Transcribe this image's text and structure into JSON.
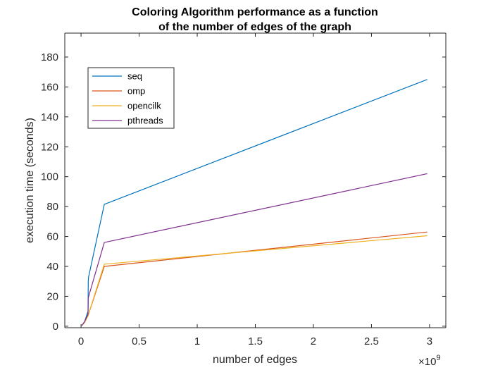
{
  "chart_data": {
    "type": "line",
    "title_lines": [
      "Coloring Algorithm performance as a function",
      "of the number of edges of the graph"
    ],
    "xlabel": "number of edges",
    "ylabel": "execution time (seconds)",
    "x_exponent_label": "×10",
    "x_exponent_power": "9",
    "xlim": [
      -0.14,
      3.14
    ],
    "ylim": [
      -1,
      196
    ],
    "xticks": [
      0,
      0.5,
      1,
      1.5,
      2,
      2.5,
      3
    ],
    "xtick_labels": [
      "0",
      "0.5",
      "1",
      "1.5",
      "2",
      "2.5",
      "3"
    ],
    "yticks": [
      0,
      20,
      40,
      60,
      80,
      100,
      120,
      140,
      160,
      180
    ],
    "ytick_labels": [
      "0",
      "20",
      "40",
      "60",
      "80",
      "100",
      "120",
      "140",
      "160",
      "180"
    ],
    "grid": false,
    "legend_position": "top-left",
    "series": [
      {
        "name": "seq",
        "color": "#0072BD",
        "x": [
          0.007,
          0.03,
          0.06,
          0.062,
          0.065,
          0.2,
          2.98
        ],
        "y": [
          0.5,
          3,
          10,
          30,
          33,
          81.5,
          165
        ]
      },
      {
        "name": "omp",
        "color": "#D95319",
        "x": [
          0.007,
          0.03,
          0.06,
          0.2,
          2.98
        ],
        "y": [
          0.4,
          2.5,
          7,
          40,
          63
        ]
      },
      {
        "name": "opencilk",
        "color": "#EDB120",
        "x": [
          0.007,
          0.03,
          0.06,
          0.2,
          2.98
        ],
        "y": [
          0.4,
          2.5,
          7,
          41.5,
          60.5
        ]
      },
      {
        "name": "pthreads",
        "color": "#7E2F8E",
        "x": [
          0.007,
          0.03,
          0.06,
          0.062,
          0.2,
          2.98
        ],
        "y": [
          0.5,
          3,
          8,
          19,
          56,
          102
        ]
      }
    ]
  }
}
